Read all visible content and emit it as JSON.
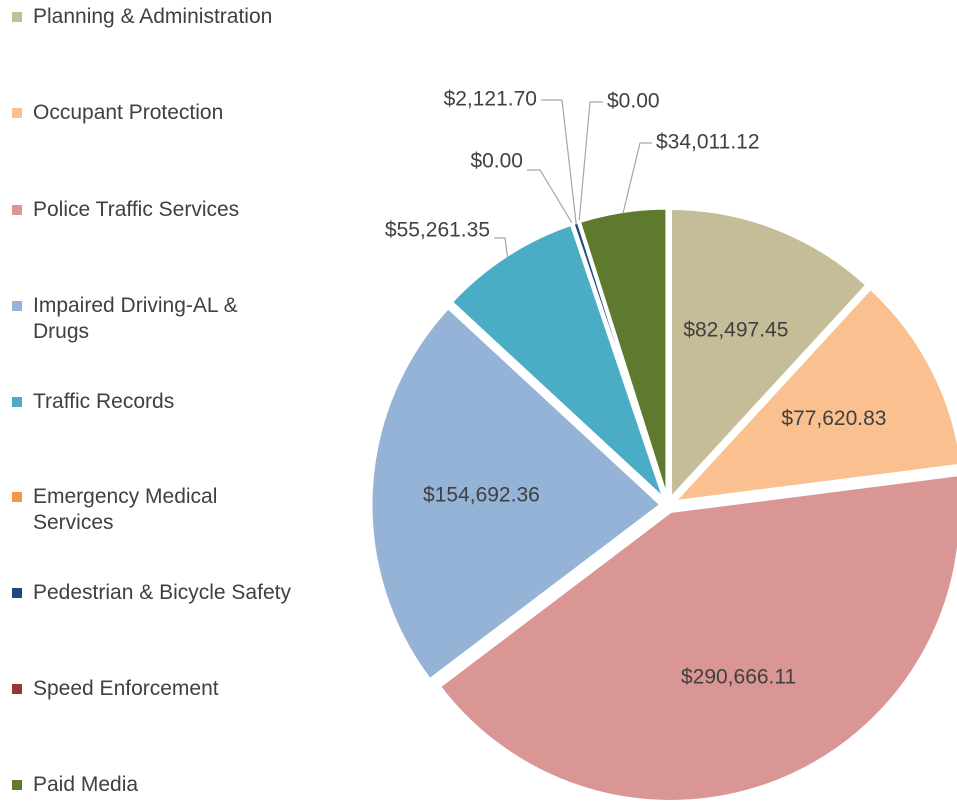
{
  "chart_data": {
    "type": "pie",
    "categories": [
      "Planning & Administration",
      "Occupant Protection",
      "Police Traffic Services",
      "Impaired Driving-AL & Drugs",
      "Traffic Records",
      "Emergency Medical Services",
      "Pedestrian & Bicycle Safety",
      "Speed Enforcement",
      "Paid Media"
    ],
    "values": [
      82497.45,
      77620.83,
      290666.11,
      154692.36,
      55261.35,
      0,
      2121.7,
      0,
      34011.12
    ],
    "value_labels": [
      "$82,497.45",
      "$77,620.83",
      "$290,666.11",
      "$154,692.36",
      "$55,261.35",
      "$0.00",
      "$2,121.70",
      "$0.00",
      "$34,011.12"
    ],
    "colors": [
      "#c4bd97",
      "#fac090",
      "#d99694",
      "#95b3d7",
      "#4bacc6",
      "#f79646",
      "#1f497d",
      "#953735",
      "#5e7a2e"
    ],
    "legend": "left"
  }
}
